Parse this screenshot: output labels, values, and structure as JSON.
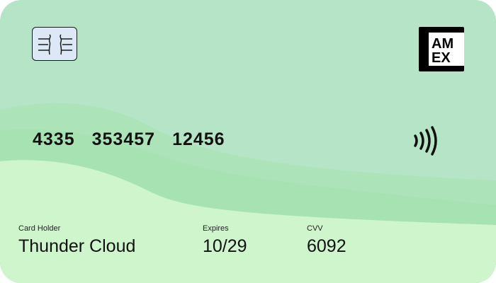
{
  "card": {
    "brand_logo_lines": [
      "AM",
      "EX"
    ],
    "number_groups": [
      "4335",
      "353457",
      "12456"
    ],
    "holder_label": "Card Holder",
    "holder_name": "Thunder Cloud",
    "expires_label": "Expires",
    "expires_value": "10/29",
    "cvv_label": "CVV",
    "cvv_value": "6092"
  },
  "icons": {
    "chip": "chip-icon",
    "brand": "amex-logo-icon",
    "contactless": "contactless-icon"
  },
  "colors": {
    "card_base": "#b6e4c6",
    "wave_mid": "#a9e3b5",
    "wave_light": "#cff5cc",
    "chip_fill": "#dde8f7",
    "text": "#111111"
  }
}
